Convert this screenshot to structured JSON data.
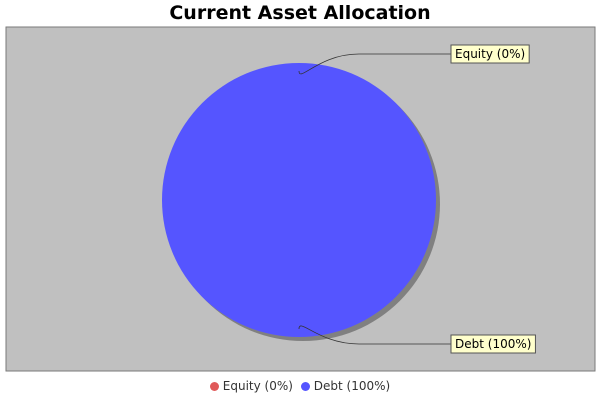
{
  "chart_data": {
    "type": "pie",
    "title": "Current Asset Allocation",
    "slices": [
      {
        "label": "Equity (0%)",
        "value": 0,
        "color": "#e05a5a"
      },
      {
        "label": "Debt (100%)",
        "value": 100,
        "color": "#5555ff"
      }
    ],
    "legend_placement": "bottom",
    "plot_background": "#c0c0c0",
    "label_background": "#ffffcc"
  }
}
